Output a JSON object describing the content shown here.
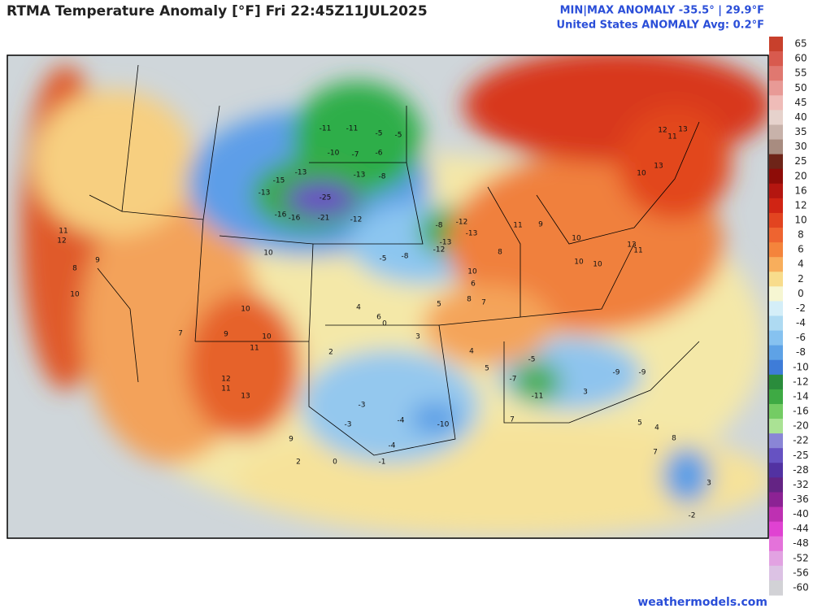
{
  "header": {
    "title": "RTMA Temperature Anomaly [°F]  Fri 22:45Z11JUL2025",
    "stats_line1": "MIN|MAX ANOMALY -35.5° | 29.9°F",
    "stats_line2": "United States ANOMALY Avg: 0.2°F"
  },
  "footer": "weathermodels.com",
  "colorbar": {
    "labels": [
      65,
      60,
      55,
      50,
      45,
      40,
      35,
      30,
      25,
      20,
      16,
      12,
      10,
      8,
      6,
      4,
      2,
      0,
      -2,
      -4,
      -6,
      -8,
      -10,
      -12,
      -14,
      -16,
      -20,
      -22,
      -25,
      -28,
      -32,
      -36,
      -40,
      -44,
      -48,
      -52,
      -56,
      -60
    ],
    "colors": [
      "#c8402c",
      "#d85a4e",
      "#e07870",
      "#e89a96",
      "#efbcb8",
      "#e6d2cc",
      "#c8b2aa",
      "#a88c80",
      "#6e2418",
      "#8e0c08",
      "#b41610",
      "#d02414",
      "#e24420",
      "#ee6430",
      "#f4843c",
      "#f8ae5c",
      "#f8dc8c",
      "#f6f6d2",
      "#d4eef8",
      "#aedaf2",
      "#86c2f0",
      "#5ea2e6",
      "#3e7cd8",
      "#2a8c3c",
      "#3eaa44",
      "#74cc64",
      "#aae294",
      "#8a86d6",
      "#6652c2",
      "#5232a2",
      "#642484",
      "#8c2294",
      "#be30b2",
      "#e042d2",
      "#e472da",
      "#e2a2e2",
      "#dcc2e4",
      "#d2d2d6"
    ]
  },
  "map_labels": [
    -25,
    -21,
    -16,
    -16,
    -13,
    -15,
    -13,
    -13,
    -12,
    -10,
    -11,
    -11,
    -7,
    -6,
    -5,
    -5,
    -8,
    -12,
    -13,
    -13,
    -8,
    -12,
    -8,
    -5,
    -10,
    -11,
    -9,
    -9,
    -5,
    -7,
    11,
    12,
    10,
    8,
    9,
    11,
    13,
    10,
    11,
    12,
    9,
    10,
    10,
    13,
    11,
    13,
    10,
    11,
    12,
    13,
    10,
    11,
    9,
    10,
    10,
    8,
    9,
    7,
    7,
    5,
    4,
    -4,
    -3,
    -3,
    -4,
    2,
    3,
    0,
    4,
    6,
    5,
    8,
    7,
    -1,
    0,
    2,
    4,
    7,
    3,
    -2,
    5,
    3,
    6,
    8,
    10
  ]
}
